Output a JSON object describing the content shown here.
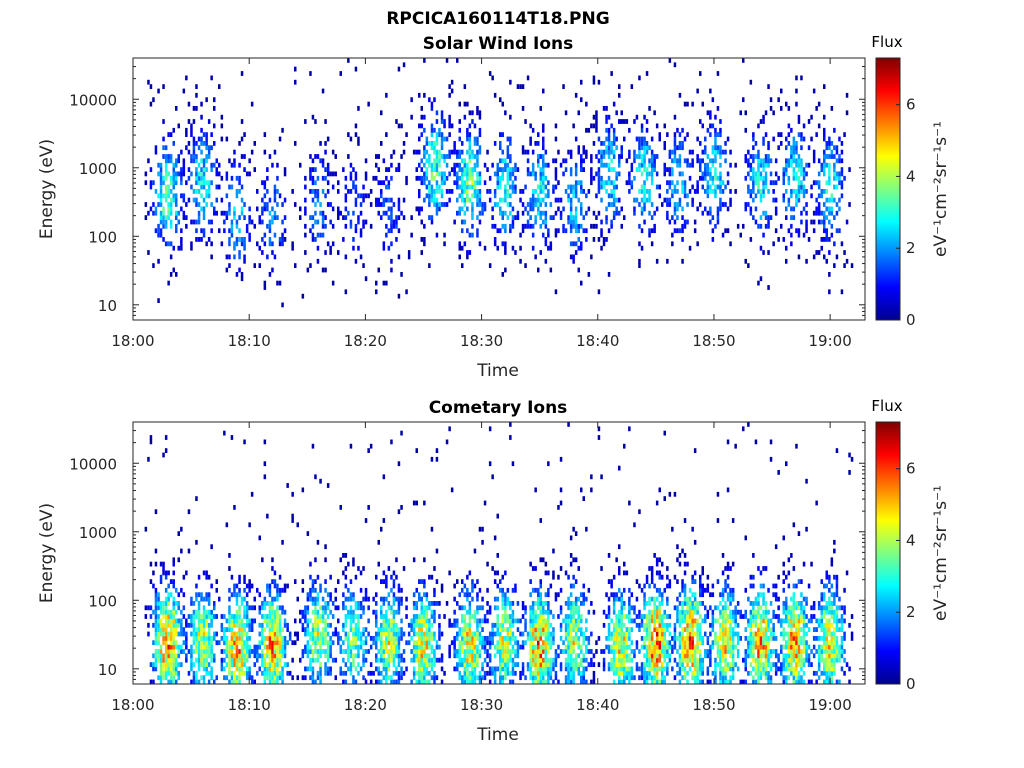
{
  "figure": {
    "title": "RPCICA160114T18.PNG"
  },
  "chart_data": [
    {
      "type": "heatmap",
      "title": "Solar Wind Ions",
      "xlabel": "Time",
      "ylabel": "Energy (eV)",
      "x_ticks": [
        "18:00",
        "18:10",
        "18:20",
        "18:30",
        "18:40",
        "18:50",
        "19:00"
      ],
      "xlim": [
        "18:00",
        "19:03"
      ],
      "y_scale": "log",
      "y_ticks": [
        "10",
        "100",
        "1000",
        "10000"
      ],
      "ylim": [
        6,
        40000
      ],
      "colorbar": {
        "label": "Flux",
        "unit": "eV⁻¹cm⁻²sr⁻¹s⁻¹",
        "range": [
          0,
          7.3
        ],
        "ticks": [
          "0",
          "2",
          "4",
          "6"
        ],
        "colormap": "jet"
      },
      "grid": false,
      "data_start": "18:01",
      "data_end": "19:02",
      "peaks": [
        {
          "time": "18:03",
          "energy": 400,
          "flux": 3.5
        },
        {
          "time": "18:06",
          "energy": 600,
          "flux": 3.0
        },
        {
          "time": "18:09",
          "energy": 200,
          "flux": 2.5
        },
        {
          "time": "18:12",
          "energy": 200,
          "flux": 2.0
        },
        {
          "time": "18:16",
          "energy": 300,
          "flux": 2.0
        },
        {
          "time": "18:19",
          "energy": 250,
          "flux": 1.5
        },
        {
          "time": "18:22",
          "energy": 250,
          "flux": 1.8
        },
        {
          "time": "18:26",
          "energy": 1000,
          "flux": 3.5
        },
        {
          "time": "18:29",
          "energy": 600,
          "flux": 3.8
        },
        {
          "time": "18:32",
          "energy": 500,
          "flux": 3.0
        },
        {
          "time": "18:35",
          "energy": 400,
          "flux": 3.0
        },
        {
          "time": "18:38",
          "energy": 300,
          "flux": 2.5
        },
        {
          "time": "18:41",
          "energy": 800,
          "flux": 3.0
        },
        {
          "time": "18:44",
          "energy": 700,
          "flux": 3.0
        },
        {
          "time": "18:47",
          "energy": 600,
          "flux": 2.5
        },
        {
          "time": "18:50",
          "energy": 800,
          "flux": 3.0
        },
        {
          "time": "18:54",
          "energy": 600,
          "flux": 3.0
        },
        {
          "time": "18:57",
          "energy": 700,
          "flux": 3.0
        },
        {
          "time": "19:00",
          "energy": 500,
          "flux": 3.0
        }
      ]
    },
    {
      "type": "heatmap",
      "title": "Cometary Ions",
      "xlabel": "Time",
      "ylabel": "Energy (eV)",
      "x_ticks": [
        "18:00",
        "18:10",
        "18:20",
        "18:30",
        "18:40",
        "18:50",
        "19:00"
      ],
      "xlim": [
        "18:00",
        "19:03"
      ],
      "y_scale": "log",
      "y_ticks": [
        "10",
        "100",
        "1000",
        "10000"
      ],
      "ylim": [
        6,
        40000
      ],
      "colorbar": {
        "label": "Flux",
        "unit": "eV⁻¹cm⁻²sr⁻¹s⁻¹",
        "range": [
          0,
          7.3
        ],
        "ticks": [
          "0",
          "2",
          "4",
          "6"
        ],
        "colormap": "jet"
      },
      "grid": false,
      "data_start": "18:01",
      "data_end": "19:02",
      "peaks": [
        {
          "time": "18:03",
          "energy": 25,
          "flux": 5.8
        },
        {
          "time": "18:06",
          "energy": 25,
          "flux": 4.5
        },
        {
          "time": "18:09",
          "energy": 20,
          "flux": 5.5
        },
        {
          "time": "18:12",
          "energy": 22,
          "flux": 5.5
        },
        {
          "time": "18:16",
          "energy": 30,
          "flux": 4.5
        },
        {
          "time": "18:19",
          "energy": 25,
          "flux": 4.0
        },
        {
          "time": "18:22",
          "energy": 25,
          "flux": 4.5
        },
        {
          "time": "18:25",
          "energy": 22,
          "flux": 5.0
        },
        {
          "time": "18:29",
          "energy": 22,
          "flux": 5.0
        },
        {
          "time": "18:32",
          "energy": 25,
          "flux": 4.5
        },
        {
          "time": "18:35",
          "energy": 22,
          "flux": 5.8
        },
        {
          "time": "18:38",
          "energy": 25,
          "flux": 4.5
        },
        {
          "time": "18:42",
          "energy": 22,
          "flux": 5.0
        },
        {
          "time": "18:45",
          "energy": 25,
          "flux": 6.0
        },
        {
          "time": "18:48",
          "energy": 25,
          "flux": 6.0
        },
        {
          "time": "18:51",
          "energy": 25,
          "flux": 5.0
        },
        {
          "time": "18:54",
          "energy": 25,
          "flux": 5.8
        },
        {
          "time": "18:57",
          "energy": 25,
          "flux": 5.5
        },
        {
          "time": "19:00",
          "energy": 25,
          "flux": 5.0
        }
      ]
    }
  ]
}
